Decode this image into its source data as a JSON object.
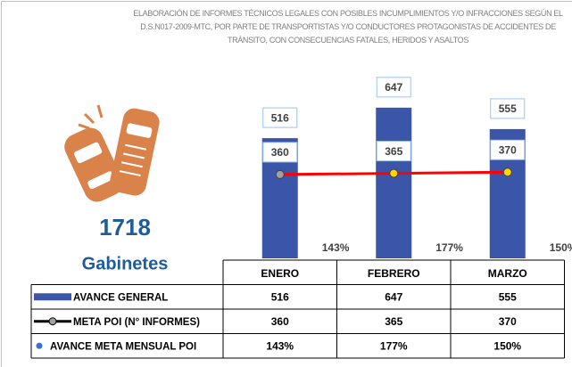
{
  "chart_data": {
    "type": "bar",
    "title": "ELABORACIÓN DE INFORMES TÉCNICOS LEGALES CON POSIBLES INCUMPLIMIENTOS Y/O INFRACCIONES SEGÚN EL D.S.N017-2009-MTC, POR PARTE DE TRANSPORTISTAS Y/O CONDUCTORES PROTAGONISTAS DE ACCIDENTES DE TRÁNSITO, CON CONSECUENCIAS FATALES, HERIDOS Y ASALTOS",
    "summary": {
      "value": 1718,
      "label": "Gabinetes"
    },
    "categories": [
      "ENERO",
      "FEBRERO",
      "MARZO"
    ],
    "ylim": [
      0,
      700
    ],
    "series": [
      {
        "name": "AVANCE GENERAL",
        "color": "#3b56a8",
        "values": [
          516,
          647,
          555
        ]
      },
      {
        "name": "META POI (N° INFORMES)",
        "color": "#ff0000",
        "type": "line",
        "marker_colors": [
          "#a0a0a0",
          "#ffd700",
          "#ffd700"
        ],
        "values": [
          360,
          365,
          370
        ]
      },
      {
        "name": "AVANCE META MENSUAL POI",
        "color": "#3b6fd6",
        "values": [
          143,
          177,
          150
        ],
        "value_labels": [
          "143%",
          "177%",
          "150%"
        ]
      }
    ]
  }
}
